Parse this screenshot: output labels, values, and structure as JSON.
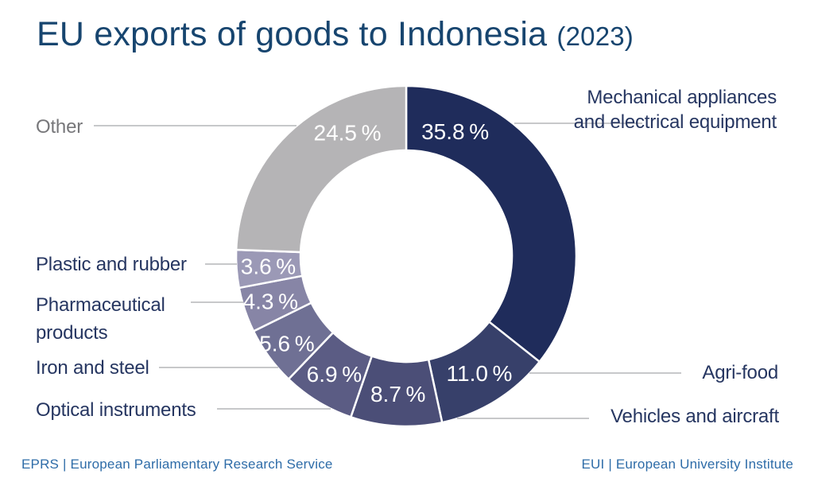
{
  "title": {
    "main": "EU exports of goods to Indonesia",
    "year": "(2023)"
  },
  "chart_data": {
    "type": "pie",
    "subtype": "donut",
    "title": "EU exports of goods to Indonesia (2023)",
    "unit": "%",
    "direction": "clockwise",
    "start_angle_deg": 0,
    "legend_position": "callout-labels-around-chart",
    "slices": [
      {
        "name": "Mechanical appliances and electrical equipment",
        "value": 35.8,
        "display": "35.8 %",
        "color": "#1f2c5b"
      },
      {
        "name": "Agri-food",
        "value": 11.0,
        "display": "11.0 %",
        "color": "#37406a"
      },
      {
        "name": "Vehicles and aircraft",
        "value": 8.7,
        "display": "8.7 %",
        "color": "#4b4e77"
      },
      {
        "name": "Optical instruments",
        "value": 6.9,
        "display": "6.9 %",
        "color": "#5b5c84"
      },
      {
        "name": "Iron and steel",
        "value": 5.6,
        "display": "5.6 %",
        "color": "#6f7094"
      },
      {
        "name": "Pharmaceutical products",
        "value": 4.3,
        "display": "4.3 %",
        "color": "#8785a6"
      },
      {
        "name": "Plastic and rubber",
        "value": 3.6,
        "display": "3.6 %",
        "color": "#9b99b6"
      },
      {
        "name": "Other",
        "value": 24.5,
        "display": "24.5 %",
        "color": "#b5b4b6"
      }
    ],
    "value_label_color": "#ffffff"
  },
  "footer": {
    "left": "EPRS | European Parliamentary Research Service",
    "right": "EUI | European University Institute"
  }
}
